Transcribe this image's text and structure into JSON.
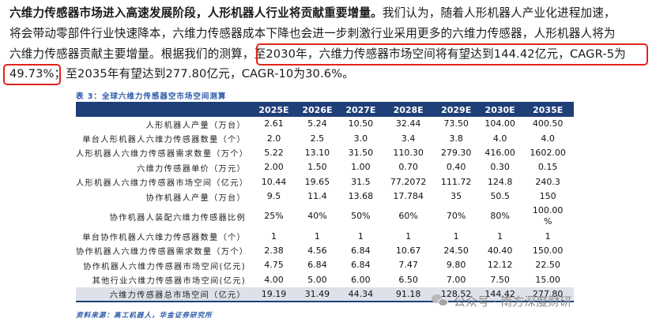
{
  "paragraph": {
    "lead_bold": "六维力传感器市场进入高速发展阶段，人形机器人行业将贡献重要增量。",
    "line1_rest": "我们认为，随着人形机器人产业化进程加速，",
    "line2": "将会带动零部件行业快速降本，六维力传感器成本下降也会进一步刺激行业采用更多的六维力传感器，人形机器人将为",
    "line3_pre": "六维力传感器贡献主要增量。根据我们的测算，",
    "line3_hl": "至2030年，六维力传感器市场空间将有望达到144.42亿元，CAGR-5为",
    "line4_hl": "49.73%；",
    "line4_rest": "至2035年有望达到277.80亿元，CAGR-10为30.6%。",
    "highlight_color": "#e0241b"
  },
  "table": {
    "title": "表 3：全球六维力传感器空市场空间测算",
    "header_color": "#1f3f78",
    "columns": [
      "",
      "2025E",
      "2026E",
      "2027E",
      "2028E",
      "2029E",
      "2030E",
      "2035E"
    ],
    "rows": [
      {
        "label": "人形机器人产量（万台）",
        "values": [
          "2.61",
          "5.24",
          "10.50",
          "32.44",
          "73.50",
          "104.00",
          "400.50"
        ]
      },
      {
        "label": "单台人形机器人六维力传感器数量（个）",
        "values": [
          "2.0",
          "2.5",
          "3.0",
          "3.4",
          "3.8",
          "4.0",
          "4.0"
        ]
      },
      {
        "label": "人形机器人六维力传感器需求数量（万个）",
        "values": [
          "5.22",
          "13.10",
          "31.50",
          "110.30",
          "279.30",
          "416.00",
          "1602.00"
        ]
      },
      {
        "label": "六维力传感器单价（万元）",
        "values": [
          "2.00",
          "1.50",
          "1.00",
          "0.70",
          "0.40",
          "0.30",
          "0.15"
        ]
      },
      {
        "label": "人形机器人六维力传感器市场空间（亿元）",
        "values": [
          "10.44",
          "19.65",
          "31.5",
          "77.2072",
          "111.72",
          "124.8",
          "240.3"
        ]
      },
      {
        "label": "协作机器人产量（万台）",
        "values": [
          "9.5",
          "11.4",
          "13.68",
          "17.784",
          "35",
          "50.5",
          "150"
        ]
      },
      {
        "label": "协作机器人装配六维力传感器比例",
        "values": [
          "25%",
          "40%",
          "50%",
          "60%",
          "70%",
          "80%",
          "100.00\n%"
        ]
      },
      {
        "label": "单台协作机器人六维力传感器数量（个）",
        "values": [
          "1",
          "1",
          "1",
          "1",
          "1",
          "1",
          "1"
        ]
      },
      {
        "label": "协作机器人六维力传感器需求数量（万个）",
        "values": [
          "2.38",
          "4.56",
          "6.84",
          "10.67",
          "24.50",
          "40.40",
          "150.00"
        ]
      },
      {
        "label": "协作机器人六维力传感器市场空间(亿元)",
        "values": [
          "4.75",
          "6.84",
          "6.84",
          "7.47",
          "9.80",
          "12.12",
          "22.50"
        ]
      },
      {
        "label": "其他行业六维力传感器市场空间(亿元)",
        "values": [
          "4.00",
          "5.00",
          "6.00",
          "6.50",
          "7.00",
          "7.50",
          "15.00"
        ]
      },
      {
        "label": "六维力传感器总市场空间（亿元）",
        "values": [
          "19.19",
          "31.49",
          "44.34",
          "91.18",
          "128.52",
          "144.42",
          "277.80"
        ]
      }
    ],
    "source": "资料来源：高工机器人，华金证券研究所"
  },
  "watermark": {
    "text": "公众号 · 南方深度财研",
    "icon": "wechat-icon"
  }
}
